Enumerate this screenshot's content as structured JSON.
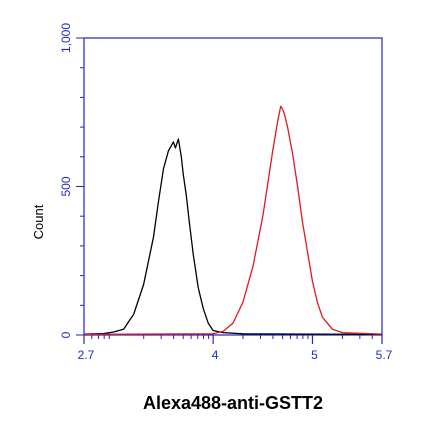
{
  "chart_data": {
    "type": "line",
    "title": "",
    "xlabel": "Alexa488-anti-GSTT2",
    "ylabel": "Count",
    "x_scale": "log",
    "xlim": [
      2.7,
      5.7
    ],
    "ylim": [
      0,
      1000
    ],
    "x_tick_labels": [
      {
        "value": 2.7,
        "label": "2.7"
      },
      {
        "value": 4,
        "label": "4"
      },
      {
        "value": 5,
        "label": "5"
      },
      {
        "value": 5.7,
        "label": "5.7"
      }
    ],
    "y_ticks": [
      {
        "value": 0,
        "label": "0"
      },
      {
        "value": 500,
        "label": "500"
      },
      {
        "value": 1000,
        "label": "1,000"
      }
    ],
    "grid": false,
    "legend": "none",
    "colors": {
      "axis": "#2323c8",
      "tick_text": "#1f2dbf"
    },
    "series": [
      {
        "color": "#000000",
        "x": [
          2.7,
          2.9,
          3.0,
          3.1,
          3.2,
          3.3,
          3.4,
          3.45,
          3.5,
          3.55,
          3.6,
          3.62,
          3.65,
          3.68,
          3.7,
          3.73,
          3.76,
          3.8,
          3.85,
          3.9,
          3.95,
          4.0,
          4.1,
          4.3,
          5.7
        ],
        "y": [
          3,
          5,
          10,
          20,
          70,
          170,
          330,
          450,
          560,
          620,
          650,
          630,
          660,
          600,
          540,
          470,
          380,
          270,
          160,
          90,
          40,
          15,
          8,
          4,
          2
        ]
      },
      {
        "color": "#e0191e",
        "x": [
          2.7,
          4.0,
          4.1,
          4.2,
          4.3,
          4.4,
          4.5,
          4.55,
          4.6,
          4.65,
          4.68,
          4.7,
          4.72,
          4.75,
          4.8,
          4.85,
          4.9,
          4.95,
          5.0,
          5.05,
          5.1,
          5.2,
          5.3,
          5.7
        ],
        "y": [
          2,
          4,
          12,
          40,
          110,
          230,
          400,
          510,
          620,
          720,
          770,
          760,
          740,
          700,
          610,
          500,
          380,
          280,
          180,
          110,
          60,
          20,
          8,
          3
        ]
      }
    ]
  }
}
